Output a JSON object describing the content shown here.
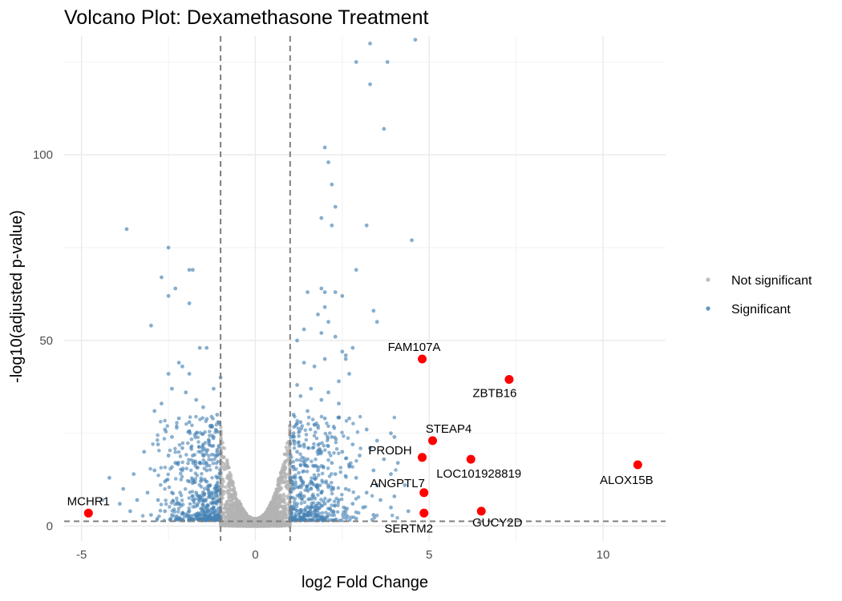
{
  "chart_data": {
    "type": "scatter",
    "title": "Volcano Plot: Dexamethasone Treatment",
    "xlabel": "log2 Fold Change",
    "ylabel": "-log10(adjusted p-value)",
    "xlim": [
      -5.5,
      11.8
    ],
    "ylim": [
      -4,
      132
    ],
    "x_ticks": [
      -5,
      0,
      5,
      10
    ],
    "y_ticks": [
      0,
      50,
      100
    ],
    "grid": true,
    "legend_position": "right",
    "thresholds": {
      "log2fc": [
        -1,
        1
      ],
      "neg_log10_padj": 1.3
    },
    "colors": {
      "not_significant": "#b3b3b3",
      "significant": "#4682b4",
      "highlight": "#ff0000",
      "threshold_line": "#7f7f7f"
    },
    "legend": [
      {
        "key": "not_significant",
        "label": "Not significant"
      },
      {
        "key": "significant",
        "label": "Significant"
      }
    ],
    "significant_points": [
      [
        -3.7,
        80
      ],
      [
        -2.5,
        75
      ],
      [
        -2.7,
        67
      ],
      [
        -1.9,
        69
      ],
      [
        -1.8,
        69
      ],
      [
        -2.3,
        64
      ],
      [
        -2.5,
        62
      ],
      [
        -3.0,
        54
      ],
      [
        -1.9,
        60
      ],
      [
        -1.6,
        48
      ],
      [
        -1.4,
        48
      ],
      [
        -2.2,
        44
      ],
      [
        -2.1,
        43
      ],
      [
        -1.9,
        41
      ],
      [
        -2.5,
        41
      ],
      [
        -1.0,
        40
      ],
      [
        -2.4,
        37
      ],
      [
        -1.2,
        37
      ],
      [
        -2.7,
        33
      ],
      [
        -2.9,
        31
      ],
      [
        -1.7,
        34
      ],
      [
        -2.0,
        36
      ],
      [
        -1.5,
        32
      ],
      [
        -1.1,
        30
      ],
      [
        -2.2,
        29
      ],
      [
        -1.9,
        28
      ],
      [
        -1.3,
        27
      ],
      [
        -2.6,
        26
      ],
      [
        -2.4,
        24
      ],
      [
        -1.7,
        25
      ],
      [
        -1.2,
        24
      ],
      [
        -2.8,
        22
      ],
      [
        -2.1,
        21
      ],
      [
        -1.5,
        22
      ],
      [
        -3.2,
        20
      ],
      [
        -2.5,
        19
      ],
      [
        -1.8,
        19
      ],
      [
        -1.1,
        20
      ],
      [
        -2.3,
        17
      ],
      [
        -1.6,
        17
      ],
      [
        -3.5,
        14
      ],
      [
        -2.9,
        15
      ],
      [
        -2.1,
        15
      ],
      [
        -1.4,
        15
      ],
      [
        -1.1,
        13
      ],
      [
        -4.2,
        13
      ],
      [
        -3.8,
        10
      ],
      [
        -2.6,
        12
      ],
      [
        -1.9,
        12
      ],
      [
        -1.3,
        11
      ],
      [
        -3.1,
        9
      ],
      [
        -2.4,
        9
      ],
      [
        -1.7,
        9
      ],
      [
        -1.1,
        8
      ],
      [
        -4.4,
        7
      ],
      [
        -3.9,
        6
      ],
      [
        -3.4,
        7
      ],
      [
        -2.8,
        7
      ],
      [
        -2.2,
        6
      ],
      [
        -1.6,
        7
      ],
      [
        -1.2,
        5
      ],
      [
        -3.6,
        4
      ],
      [
        -2.6,
        4
      ],
      [
        -1.9,
        4
      ],
      [
        -1.3,
        3
      ],
      [
        -2.4,
        3
      ],
      [
        -1.5,
        2
      ],
      [
        -3.0,
        3
      ],
      [
        3.3,
        130
      ],
      [
        4.6,
        131
      ],
      [
        2.9,
        125
      ],
      [
        3.8,
        125
      ],
      [
        3.3,
        119
      ],
      [
        3.7,
        107
      ],
      [
        2.0,
        102
      ],
      [
        2.1,
        98
      ],
      [
        2.2,
        92
      ],
      [
        2.3,
        86
      ],
      [
        1.9,
        83
      ],
      [
        2.2,
        81
      ],
      [
        3.2,
        81
      ],
      [
        4.5,
        77
      ],
      [
        2.9,
        69
      ],
      [
        1.9,
        64
      ],
      [
        2.0,
        63
      ],
      [
        1.5,
        63
      ],
      [
        2.3,
        63
      ],
      [
        2.5,
        62
      ],
      [
        3.4,
        58
      ],
      [
        3.5,
        55
      ],
      [
        2.0,
        59
      ],
      [
        1.8,
        57
      ],
      [
        2.1,
        55
      ],
      [
        1.4,
        53
      ],
      [
        1.9,
        52
      ],
      [
        1.2,
        50
      ],
      [
        2.3,
        51
      ],
      [
        2.8,
        48
      ],
      [
        2.5,
        47
      ],
      [
        2.6,
        45
      ],
      [
        2.6,
        46
      ],
      [
        2.0,
        45
      ],
      [
        1.4,
        44
      ],
      [
        1.7,
        43
      ],
      [
        2.7,
        41
      ],
      [
        2.4,
        39
      ],
      [
        1.2,
        38
      ],
      [
        1.6,
        37
      ],
      [
        2.1,
        36
      ],
      [
        1.3,
        35
      ],
      [
        1.9,
        34
      ],
      [
        2.4,
        33
      ],
      [
        1.5,
        31
      ],
      [
        1.1,
        30
      ],
      [
        2.0,
        29
      ],
      [
        2.7,
        29
      ],
      [
        1.3,
        28
      ],
      [
        1.8,
        27
      ],
      [
        3.2,
        26
      ],
      [
        3.9,
        25
      ],
      [
        4.0,
        24
      ],
      [
        1.1,
        25
      ],
      [
        2.2,
        24
      ],
      [
        3.5,
        23
      ],
      [
        1.4,
        22
      ],
      [
        2.8,
        22
      ],
      [
        3.3,
        21
      ],
      [
        1.2,
        20
      ],
      [
        1.9,
        20
      ],
      [
        2.5,
        20
      ],
      [
        3.0,
        19
      ],
      [
        3.7,
        18
      ],
      [
        1.5,
        18
      ],
      [
        2.2,
        17
      ],
      [
        4.1,
        17
      ],
      [
        1.1,
        16
      ],
      [
        2.7,
        16
      ],
      [
        3.4,
        15
      ],
      [
        1.8,
        15
      ],
      [
        2.3,
        14
      ],
      [
        3.9,
        14
      ],
      [
        1.3,
        13
      ],
      [
        2.9,
        13
      ],
      [
        1.6,
        12
      ],
      [
        2.1,
        11
      ],
      [
        3.5,
        11
      ],
      [
        4.3,
        11
      ],
      [
        1.1,
        10
      ],
      [
        2.6,
        10
      ],
      [
        1.9,
        9
      ],
      [
        3.2,
        9
      ],
      [
        4.0,
        8
      ],
      [
        1.4,
        8
      ],
      [
        2.4,
        7
      ],
      [
        3.6,
        7
      ],
      [
        1.2,
        6
      ],
      [
        2.0,
        6
      ],
      [
        2.8,
        6
      ],
      [
        3.9,
        5
      ],
      [
        1.7,
        5
      ],
      [
        3.1,
        5
      ],
      [
        4.4,
        4
      ],
      [
        1.3,
        4
      ],
      [
        2.2,
        4
      ],
      [
        2.6,
        3
      ],
      [
        1.5,
        3
      ],
      [
        3.4,
        3
      ],
      [
        1.0,
        2
      ],
      [
        1.9,
        2
      ],
      [
        2.9,
        2
      ]
    ],
    "highlighted": [
      {
        "gene": "MCHR1",
        "x": -4.8,
        "y": 3.5
      },
      {
        "gene": "FAM107A",
        "x": 4.8,
        "y": 45
      },
      {
        "gene": "ZBTB16",
        "x": 7.3,
        "y": 39.5
      },
      {
        "gene": "STEAP4",
        "x": 5.1,
        "y": 23
      },
      {
        "gene": "PRODH",
        "x": 4.8,
        "y": 18.5
      },
      {
        "gene": "LOC101928819",
        "x": 6.2,
        "y": 18
      },
      {
        "gene": "ALOX15B",
        "x": 11.0,
        "y": 16.5
      },
      {
        "gene": "ANGPTL7",
        "x": 4.85,
        "y": 9
      },
      {
        "gene": "SERTM2",
        "x": 4.85,
        "y": 3.5
      },
      {
        "gene": "GUCY2D",
        "x": 6.5,
        "y": 4
      }
    ]
  }
}
